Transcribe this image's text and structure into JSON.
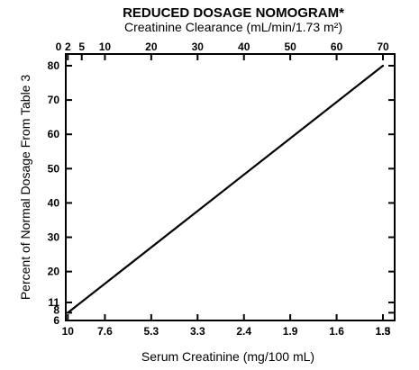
{
  "chart_data": {
    "type": "line",
    "title": "REDUCED DOSAGE NOMOGRAM*",
    "subtitle": "Creatinine Clearance (mL/min/1.73 m²)",
    "xlabel": "Serum Creatinine (mg/100 mL)",
    "ylabel": "Percent of Normal Dosage From Table 3",
    "x_top_axis": {
      "label": "Creatinine Clearance (mL/min/1.73 m²)",
      "ticks": [
        0,
        2,
        5,
        10,
        20,
        30,
        40,
        50,
        60,
        70
      ],
      "tick_labels": [
        "0",
        "2",
        "5",
        "10",
        "20",
        "30",
        "40",
        "50",
        "60",
        "70"
      ],
      "range": [
        0,
        72
      ]
    },
    "x_bottom_axis": {
      "label": "Serum Creatinine (mg/100 mL)",
      "tick_labels": [
        "10",
        "7.6",
        "5.3",
        "3.3",
        "2.4",
        "1.9",
        "1.6",
        "1.5",
        "1.3"
      ],
      "aligned_clearance": [
        2,
        10,
        20,
        30,
        40,
        50,
        60,
        70,
        70
      ]
    },
    "y_axis": {
      "ticks": [
        6,
        8,
        11,
        20,
        30,
        40,
        50,
        60,
        70,
        80
      ],
      "tick_labels": [
        "6",
        "8",
        "11",
        "20",
        "30",
        "40",
        "50",
        "60",
        "70",
        "80"
      ],
      "range": [
        6,
        82
      ]
    },
    "series": [
      {
        "x": [
          2,
          70
        ],
        "y": [
          8,
          80
        ]
      }
    ],
    "grid": false,
    "legend": "none"
  }
}
